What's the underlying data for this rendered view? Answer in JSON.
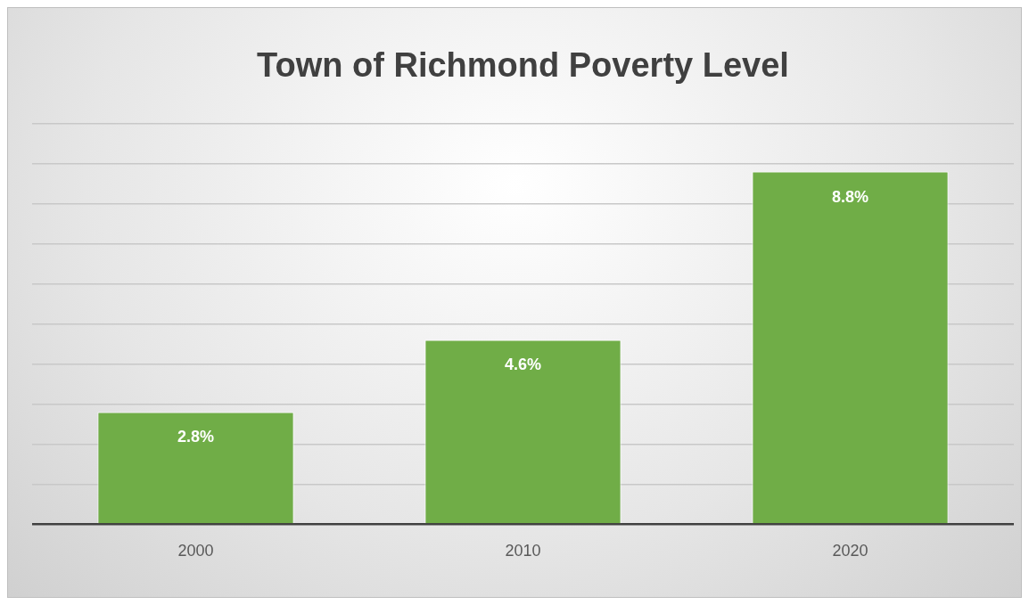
{
  "chart_data": {
    "type": "bar",
    "title": "Town of Richmond Poverty Level",
    "categories": [
      "2000",
      "2010",
      "2020"
    ],
    "values": [
      2.8,
      4.6,
      8.8
    ],
    "value_labels": [
      "2.8%",
      "4.6%",
      "8.8%"
    ],
    "color": "#70ad47",
    "ylim": [
      0,
      10
    ],
    "grid": "y",
    "tick_labels": "x",
    "legend": false
  }
}
